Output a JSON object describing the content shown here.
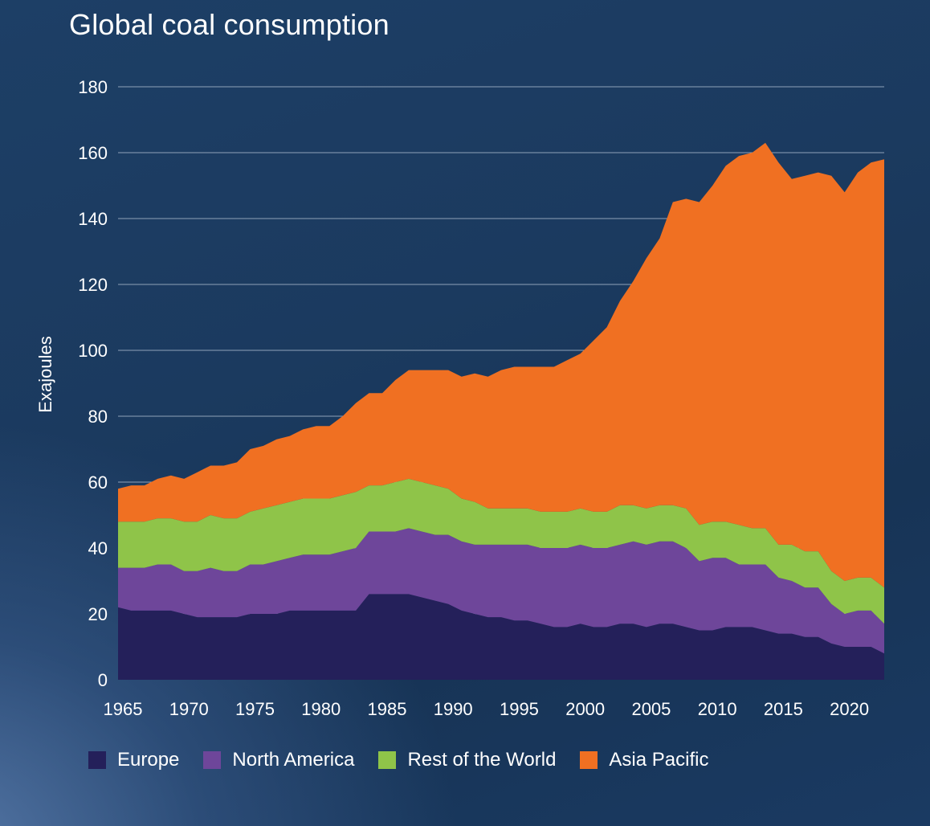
{
  "title": "Global coal consumption",
  "colors": {
    "europe": "#24205a",
    "north_america": "#6e469a",
    "rest_of_world": "#8fc449",
    "asia_pacific": "#f07022",
    "gridline": "#8fa2b8"
  },
  "chart_data": {
    "type": "area",
    "stacked": true,
    "title": "Global coal consumption",
    "xlabel": "",
    "ylabel": "Exajoules",
    "xlim": [
      1965,
      2023
    ],
    "ylim": [
      0,
      180
    ],
    "x_ticks": [
      "1965",
      "1970",
      "1975",
      "1980",
      "1985",
      "1990",
      "1995",
      "2000",
      "2005",
      "2010",
      "2015",
      "2020"
    ],
    "y_ticks": [
      "0",
      "20",
      "40",
      "60",
      "80",
      "100",
      "120",
      "140",
      "160",
      "180"
    ],
    "grid": true,
    "legend_position": "bottom",
    "x": [
      1965,
      1966,
      1967,
      1968,
      1969,
      1970,
      1971,
      1972,
      1973,
      1974,
      1975,
      1976,
      1977,
      1978,
      1979,
      1980,
      1981,
      1982,
      1983,
      1984,
      1985,
      1986,
      1987,
      1988,
      1989,
      1990,
      1991,
      1992,
      1993,
      1994,
      1995,
      1996,
      1997,
      1998,
      1999,
      2000,
      2001,
      2002,
      2003,
      2004,
      2005,
      2006,
      2007,
      2008,
      2009,
      2010,
      2011,
      2012,
      2013,
      2014,
      2015,
      2016,
      2017,
      2018,
      2019,
      2020,
      2021,
      2022,
      2023
    ],
    "series": [
      {
        "name": "Europe",
        "color": "#24205a",
        "values": [
          22,
          21,
          21,
          21,
          21,
          20,
          19,
          19,
          19,
          19,
          20,
          20,
          20,
          21,
          21,
          21,
          21,
          21,
          21,
          26,
          26,
          26,
          26,
          25,
          24,
          23,
          21,
          20,
          19,
          19,
          18,
          18,
          17,
          16,
          16,
          17,
          16,
          16,
          17,
          17,
          16,
          17,
          17,
          16,
          15,
          15,
          16,
          16,
          16,
          15,
          14,
          14,
          13,
          13,
          11,
          10,
          10,
          10,
          8
        ]
      },
      {
        "name": "North America",
        "color": "#6e469a",
        "values": [
          12,
          13,
          13,
          14,
          14,
          13,
          14,
          15,
          14,
          14,
          15,
          15,
          16,
          16,
          17,
          17,
          17,
          18,
          19,
          19,
          19,
          19,
          20,
          20,
          20,
          21,
          21,
          21,
          22,
          22,
          23,
          23,
          23,
          24,
          24,
          24,
          24,
          24,
          24,
          25,
          25,
          25,
          25,
          24,
          21,
          22,
          21,
          19,
          19,
          20,
          17,
          16,
          15,
          15,
          12,
          10,
          11,
          11,
          9
        ]
      },
      {
        "name": "Rest of the World",
        "color": "#8fc449",
        "values": [
          14,
          14,
          14,
          14,
          14,
          15,
          15,
          16,
          16,
          16,
          16,
          17,
          17,
          17,
          17,
          17,
          17,
          17,
          17,
          14,
          14,
          15,
          15,
          15,
          15,
          14,
          13,
          13,
          11,
          11,
          11,
          11,
          11,
          11,
          11,
          11,
          11,
          11,
          12,
          11,
          11,
          11,
          11,
          12,
          11,
          11,
          11,
          12,
          11,
          11,
          10,
          11,
          11,
          11,
          10,
          10,
          10,
          10,
          11
        ]
      },
      {
        "name": "Asia Pacific",
        "color": "#f07022",
        "values": [
          10,
          11,
          11,
          12,
          13,
          13,
          15,
          15,
          16,
          17,
          19,
          19,
          20,
          20,
          21,
          22,
          22,
          24,
          27,
          28,
          28,
          31,
          33,
          34,
          35,
          36,
          37,
          39,
          40,
          42,
          43,
          43,
          44,
          44,
          46,
          47,
          52,
          56,
          62,
          68,
          76,
          81,
          92,
          94,
          98,
          102,
          108,
          112,
          114,
          117,
          116,
          111,
          114,
          115,
          120,
          118,
          123,
          126,
          130
        ]
      }
    ]
  }
}
